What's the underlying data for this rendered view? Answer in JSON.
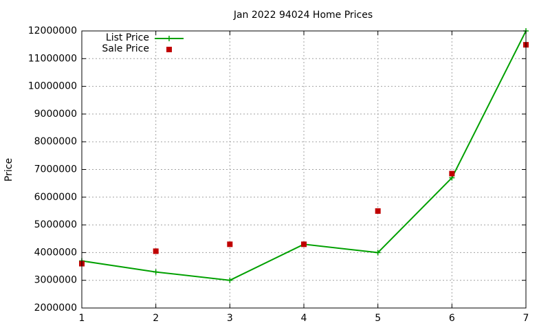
{
  "chart_data": {
    "type": "line",
    "title": "Jan 2022 94024 Home Prices",
    "xlabel": "",
    "ylabel": "Price",
    "x": [
      1,
      2,
      3,
      4,
      5,
      6,
      7
    ],
    "xlim": [
      1,
      7
    ],
    "ylim": [
      2000000,
      12000000
    ],
    "x_ticks": [
      "1",
      "2",
      "3",
      "4",
      "5",
      "6",
      "7"
    ],
    "y_ticks": [
      "2000000",
      "3000000",
      "4000000",
      "5000000",
      "6000000",
      "7000000",
      "8000000",
      "9000000",
      "10000000",
      "11000000",
      "12000000"
    ],
    "grid": true,
    "legend_position": "top-left",
    "series": [
      {
        "name": "List Price",
        "style": "line+plus-marker",
        "color": "#00a000",
        "values": [
          3700000,
          3300000,
          3000000,
          4300000,
          4000000,
          6700000,
          12000000
        ]
      },
      {
        "name": "Sale Price",
        "style": "square-marker",
        "color": "#c00000",
        "values": [
          3600000,
          4050000,
          4300000,
          4300000,
          5500000,
          6850000,
          11500000
        ]
      }
    ]
  }
}
